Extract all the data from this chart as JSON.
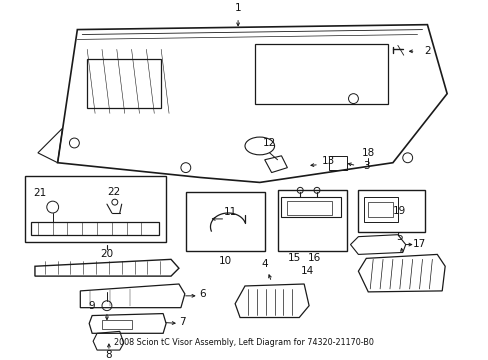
{
  "title": "2008 Scion tC Visor Assembly, Left Diagram for 74320-21170-B0",
  "bg_color": "#ffffff",
  "fig_width": 4.89,
  "fig_height": 3.6,
  "dpi": 100,
  "lc": "#1a1a1a",
  "tc": "#111111",
  "fs": 7.5,
  "title_fs": 5.8
}
